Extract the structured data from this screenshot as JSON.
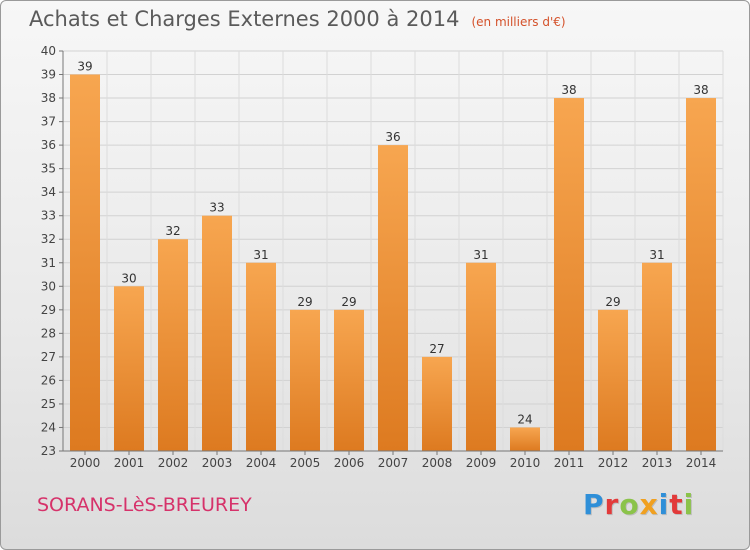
{
  "chart_data": {
    "type": "bar",
    "title": "Achats et Charges Externes 2000 à 2014",
    "subtitle": "(en milliers d'€)",
    "categories": [
      "2000",
      "2001",
      "2002",
      "2003",
      "2004",
      "2005",
      "2006",
      "2007",
      "2008",
      "2009",
      "2010",
      "2011",
      "2012",
      "2013",
      "2014"
    ],
    "values": [
      39,
      30,
      32,
      33,
      31,
      29,
      29,
      36,
      27,
      31,
      24,
      38,
      29,
      31,
      38
    ],
    "ylim": [
      23,
      40
    ],
    "yticks": [
      23,
      24,
      25,
      26,
      27,
      28,
      29,
      30,
      31,
      32,
      33,
      34,
      35,
      36,
      37,
      38,
      39,
      40
    ],
    "grid": true,
    "bar_color": "#f09a3e"
  },
  "footer": {
    "commune": "SORANS-LèS-BREUREY",
    "brand": "Proxiti"
  }
}
